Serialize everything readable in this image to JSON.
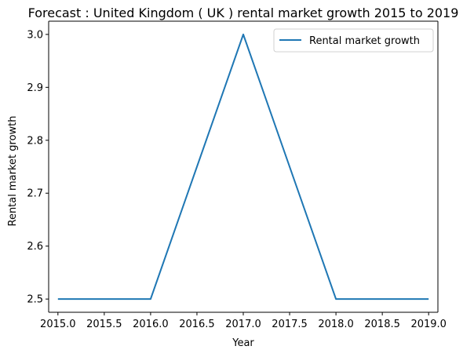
{
  "chart_data": {
    "type": "line",
    "title": "Forecast : United Kingdom ( UK ) rental market growth 2015 to 2019",
    "xlabel": "Year",
    "ylabel": "Rental market growth",
    "x": [
      2015,
      2016,
      2017,
      2018,
      2019
    ],
    "series": [
      {
        "name": "Rental market growth",
        "values": [
          2.5,
          2.5,
          3.0,
          2.5,
          2.5
        ],
        "color": "#1f77b4"
      }
    ],
    "xlim": [
      2014.9,
      2019.1
    ],
    "ylim": [
      2.475,
      3.025
    ],
    "xticks": [
      "2015.0",
      "2015.5",
      "2016.0",
      "2016.5",
      "2017.0",
      "2017.5",
      "2018.0",
      "2018.5",
      "2019.0"
    ],
    "yticks": [
      "2.5",
      "2.6",
      "2.7",
      "2.8",
      "2.9",
      "3.0"
    ],
    "grid": false,
    "legend_position": "top-right"
  }
}
